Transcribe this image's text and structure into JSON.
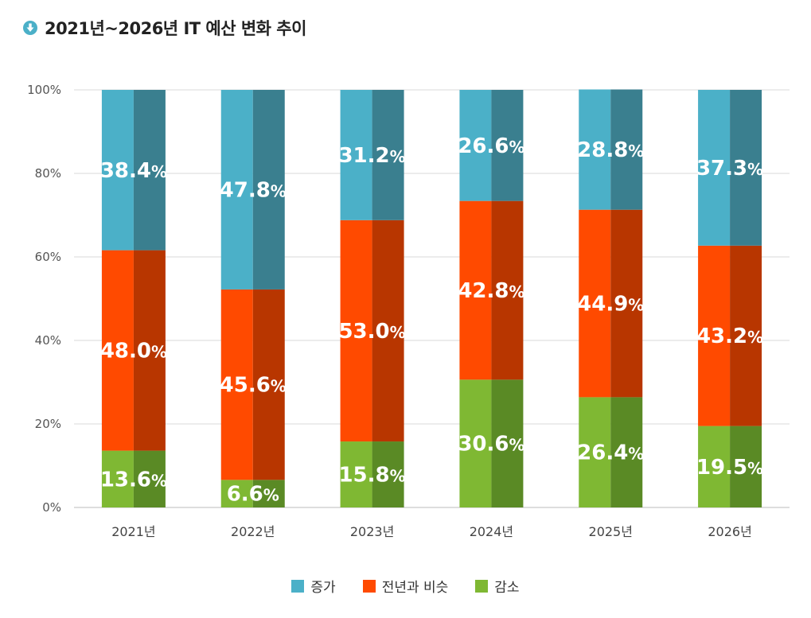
{
  "title": "2021년~2026년 IT 예산 변화 추이",
  "chart_data": {
    "type": "bar",
    "stacked": true,
    "categories": [
      "2021년",
      "2022년",
      "2023년",
      "2024년",
      "2025년",
      "2026년"
    ],
    "series": [
      {
        "name": "감소",
        "color": "#7fb833",
        "shade": "#5a8a25",
        "values": [
          13.6,
          6.6,
          15.8,
          30.6,
          26.4,
          19.5
        ]
      },
      {
        "name": "전년과 비슷",
        "color": "#ff4a00",
        "shade": "#b83600",
        "values": [
          48.0,
          45.6,
          53.0,
          42.8,
          44.9,
          43.2
        ]
      },
      {
        "name": "증가",
        "color": "#4bb0c8",
        "shade": "#3a7f8f",
        "values": [
          38.4,
          47.8,
          31.2,
          26.6,
          28.8,
          37.3
        ]
      }
    ],
    "ylim": [
      0,
      100
    ],
    "yticks": [
      "0%",
      "20%",
      "40%",
      "60%",
      "80%",
      "100%"
    ],
    "grid": true,
    "legend_position": "bottom",
    "legend_order": [
      "증가",
      "전년과 비슷",
      "감소"
    ]
  }
}
